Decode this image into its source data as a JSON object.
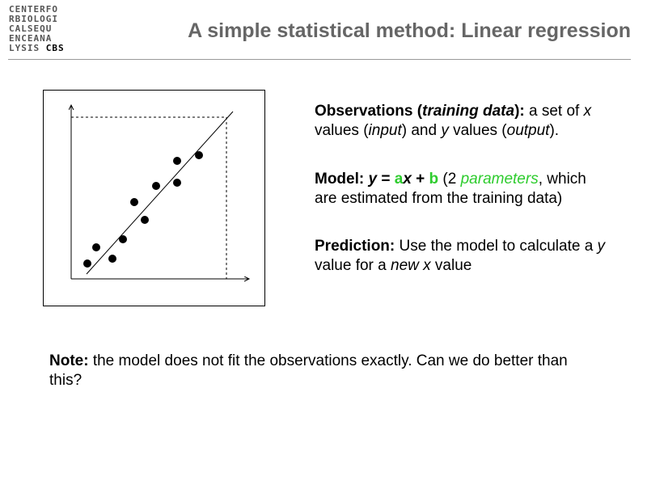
{
  "logo": {
    "lines": [
      "CENTERFO",
      "RBIOLOGI",
      "CALSEQU",
      "ENCEANA",
      "LYSIS"
    ],
    "mark": "CBS"
  },
  "header": {
    "title": "A simple statistical method: Linear regression"
  },
  "points": [
    {
      "runs": [
        "Observations (",
        "training data",
        "):",
        " a set of ",
        "x",
        " values (",
        "input",
        ") and ",
        "y",
        " values (",
        "output",
        ")."
      ]
    },
    {
      "runs": [
        "Model: ",
        "y",
        " = ",
        "a",
        "x",
        " + ",
        "b",
        " (2 ",
        "parameters",
        ", which are estimated from the training data)"
      ]
    },
    {
      "runs": [
        "Prediction:",
        " Use the model to calculate a ",
        "y",
        " value for a ",
        "new x",
        " value"
      ]
    }
  ],
  "note": {
    "runs": [
      "Note:",
      " the model does not fit the observations exactly. Can we do better than this?"
    ]
  }
}
